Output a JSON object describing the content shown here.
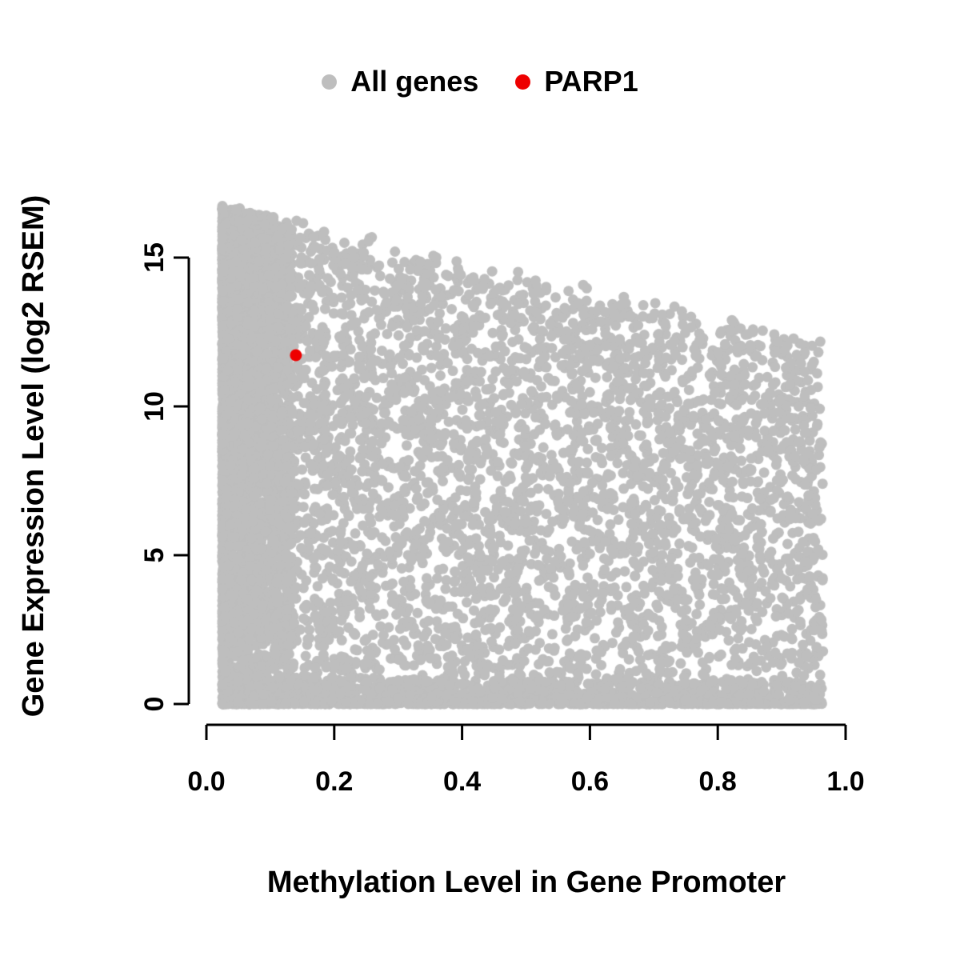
{
  "chart_data": {
    "type": "scatter",
    "title": "",
    "xlabel": "Methylation Level in Gene Promoter",
    "ylabel": "Gene Expression Level (log2 RSEM)",
    "xlim": [
      0.0,
      1.0
    ],
    "ylim": [
      0,
      17
    ],
    "x_ticks": [
      0.0,
      0.2,
      0.4,
      0.6,
      0.8,
      1.0
    ],
    "x_tick_labels": [
      "0.0",
      "0.2",
      "0.4",
      "0.6",
      "0.8",
      "1.0"
    ],
    "y_ticks": [
      0,
      5,
      10,
      15
    ],
    "y_tick_labels": [
      "0",
      "5",
      "10",
      "15"
    ],
    "grid": false,
    "legend": {
      "position": "top",
      "entries": [
        {
          "label": "All genes",
          "color": "#bebebe"
        },
        {
          "label": "PARP1",
          "color": "#ee0000"
        }
      ]
    },
    "series": [
      {
        "name": "All genes",
        "color": "#bebebe",
        "style": "dense-cloud",
        "generator": {
          "seed": 20240117,
          "n": 9000,
          "x_min": 0.025,
          "x_max": 0.965,
          "left_cluster_fraction": 0.34,
          "bottom_band_fraction": 0.14,
          "envelope": {
            "y_at_x0": 16.6,
            "y_at_x1": 11.9
          }
        }
      },
      {
        "name": "PARP1",
        "color": "#ee0000",
        "points": [
          [
            0.14,
            11.72
          ]
        ]
      }
    ]
  }
}
